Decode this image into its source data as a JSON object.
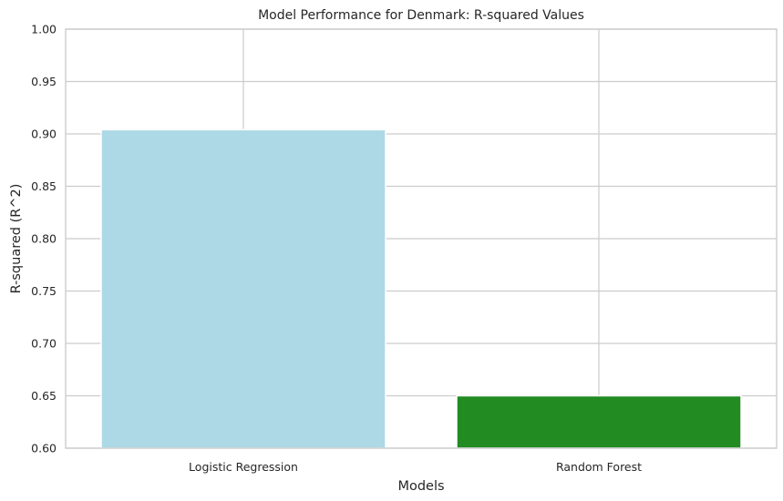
{
  "chart_data": {
    "type": "bar",
    "title": "Model Performance for Denmark: R-squared Values",
    "xlabel": "Models",
    "ylabel": "R-squared (R^2)",
    "categories": [
      "Logistic Regression",
      "Random Forest"
    ],
    "values": [
      0.904,
      0.65
    ],
    "colors": [
      "#add8e6",
      "#228b22"
    ],
    "ylim": [
      0.6,
      1.0
    ],
    "yticks": [
      "0.60",
      "0.65",
      "0.70",
      "0.75",
      "0.80",
      "0.85",
      "0.90",
      "0.95",
      "1.00"
    ],
    "grid": true,
    "legend": "none"
  }
}
